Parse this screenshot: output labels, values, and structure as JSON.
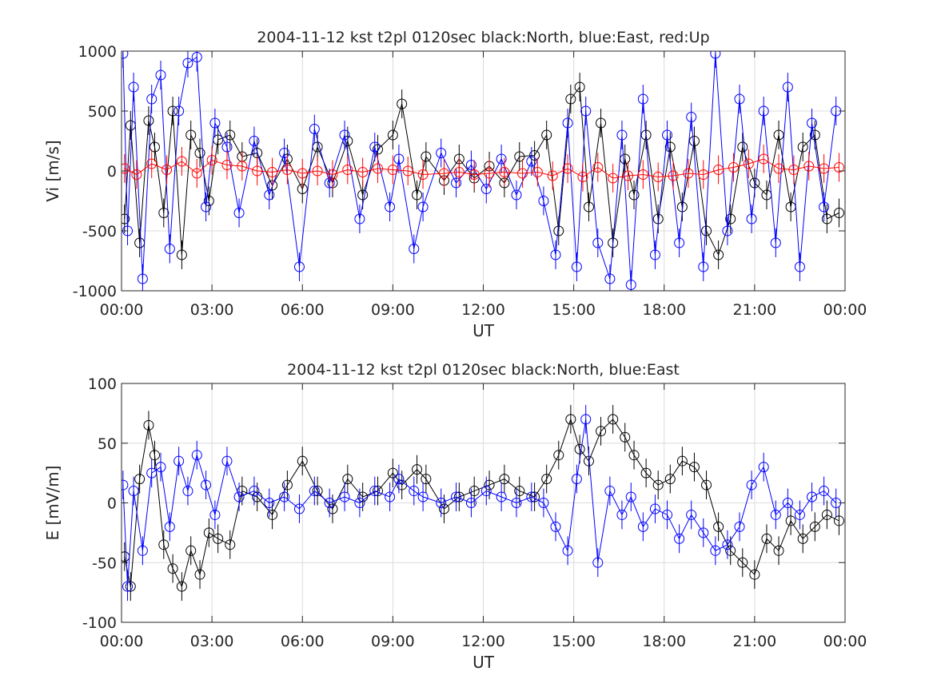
{
  "chart_data": [
    {
      "type": "scatter",
      "title": "2004-11-12 kst t2pl 0120sec black:North, blue:East, red:Up",
      "xlabel": "UT",
      "ylabel": "Vi [m/s]",
      "xlim": [
        0,
        24
      ],
      "ylim": [
        -1000,
        1000
      ],
      "xticks": [
        "00:00",
        "03:00",
        "06:00",
        "09:00",
        "12:00",
        "15:00",
        "18:00",
        "21:00",
        "00:00"
      ],
      "yticks": [
        "-1000",
        "-500",
        "0",
        "500",
        "1000"
      ],
      "grid": true,
      "marker": "open-circle-with-errorbar",
      "series": [
        {
          "name": "North",
          "color": "#000000",
          "x_hours": [
            0.1,
            0.3,
            0.6,
            0.9,
            1.1,
            1.4,
            1.7,
            2.0,
            2.3,
            2.6,
            2.9,
            3.2,
            3.6,
            4.0,
            4.5,
            5.0,
            5.5,
            6.0,
            6.5,
            7.0,
            7.5,
            8.0,
            8.5,
            9.0,
            9.3,
            9.8,
            10.1,
            10.7,
            11.2,
            11.7,
            12.2,
            12.7,
            13.2,
            13.7,
            14.1,
            14.5,
            14.9,
            15.2,
            15.5,
            15.9,
            16.3,
            16.7,
            17.0,
            17.4,
            17.8,
            18.2,
            18.6,
            19.0,
            19.4,
            19.8,
            20.2,
            20.6,
            21.0,
            21.4,
            21.8,
            22.2,
            22.6,
            23.0,
            23.4,
            23.8
          ],
          "values": [
            -400,
            380,
            -600,
            420,
            200,
            -350,
            500,
            -700,
            300,
            150,
            -250,
            260,
            300,
            120,
            150,
            -120,
            100,
            -150,
            200,
            -100,
            250,
            -200,
            180,
            300,
            560,
            -200,
            120,
            -80,
            100,
            -60,
            40,
            -100,
            120,
            130,
            300,
            -500,
            600,
            700,
            -300,
            400,
            -600,
            100,
            -200,
            300,
            -400,
            200,
            -300,
            250,
            -500,
            -700,
            -400,
            200,
            -100,
            -200,
            300,
            -300,
            200,
            300,
            -400,
            -350
          ]
        },
        {
          "name": "East",
          "color": "#0000ff",
          "x_hours": [
            0.05,
            0.2,
            0.4,
            0.7,
            1.0,
            1.3,
            1.6,
            1.9,
            2.2,
            2.5,
            2.8,
            3.1,
            3.5,
            3.9,
            4.4,
            4.9,
            5.4,
            5.9,
            6.4,
            6.9,
            7.4,
            7.9,
            8.4,
            8.9,
            9.2,
            9.7,
            10.0,
            10.6,
            11.1,
            11.6,
            12.1,
            12.6,
            13.1,
            13.6,
            14.0,
            14.4,
            14.8,
            15.1,
            15.4,
            15.8,
            16.2,
            16.6,
            16.9,
            17.3,
            17.7,
            18.1,
            18.5,
            18.9,
            19.3,
            19.7,
            20.1,
            20.5,
            20.9,
            21.3,
            21.7,
            22.1,
            22.5,
            22.9,
            23.3,
            23.7
          ],
          "values": [
            980,
            -500,
            700,
            -900,
            600,
            800,
            -650,
            500,
            900,
            950,
            -300,
            400,
            200,
            -350,
            250,
            -200,
            150,
            -800,
            350,
            -100,
            300,
            -400,
            200,
            -300,
            100,
            -650,
            -300,
            150,
            -100,
            50,
            -150,
            100,
            -200,
            80,
            -250,
            -700,
            400,
            -800,
            500,
            -600,
            -900,
            300,
            -950,
            600,
            -700,
            300,
            -600,
            450,
            -800,
            980,
            -500,
            600,
            -400,
            500,
            -600,
            700,
            -800,
            400,
            -300,
            500
          ]
        },
        {
          "name": "Up",
          "color": "#ff0000",
          "x_hours": [
            0.1,
            0.5,
            1.0,
            1.5,
            2.0,
            2.5,
            3.0,
            3.5,
            4.0,
            4.5,
            5.0,
            5.5,
            6.0,
            6.5,
            7.0,
            7.5,
            8.0,
            8.5,
            9.0,
            9.5,
            10.0,
            10.7,
            11.2,
            11.7,
            12.2,
            12.7,
            13.3,
            13.8,
            14.3,
            14.8,
            15.3,
            15.8,
            16.3,
            16.8,
            17.3,
            17.8,
            18.3,
            18.8,
            19.3,
            19.8,
            20.3,
            20.8,
            21.3,
            21.8,
            22.3,
            22.8,
            23.3,
            23.8
          ],
          "values": [
            20,
            -30,
            60,
            10,
            80,
            -20,
            90,
            50,
            40,
            0,
            -10,
            10,
            -20,
            0,
            -30,
            10,
            -10,
            20,
            10,
            0,
            -30,
            -20,
            -10,
            -30,
            -20,
            -10,
            -20,
            -10,
            -40,
            20,
            -50,
            30,
            -60,
            -40,
            -30,
            -50,
            -40,
            -20,
            -30,
            10,
            30,
            60,
            100,
            20,
            10,
            40,
            20,
            30
          ]
        }
      ]
    },
    {
      "type": "scatter",
      "title": "2004-11-12 kst t2pl 0120sec black:North, blue:East",
      "xlabel": "UT",
      "ylabel": "E [mV/m]",
      "xlim": [
        0,
        24
      ],
      "ylim": [
        -100,
        100
      ],
      "xticks": [
        "00:00",
        "03:00",
        "06:00",
        "09:00",
        "12:00",
        "15:00",
        "18:00",
        "21:00",
        "00:00"
      ],
      "yticks": [
        "-100",
        "-50",
        "0",
        "50",
        "100"
      ],
      "grid": true,
      "marker": "open-circle-with-errorbar",
      "series": [
        {
          "name": "North",
          "color": "#000000",
          "x_hours": [
            0.1,
            0.3,
            0.6,
            0.9,
            1.1,
            1.4,
            1.7,
            2.0,
            2.3,
            2.6,
            2.9,
            3.2,
            3.6,
            4.0,
            4.5,
            5.0,
            5.5,
            6.0,
            6.5,
            7.0,
            7.5,
            8.0,
            8.5,
            9.0,
            9.3,
            9.8,
            10.1,
            10.7,
            11.2,
            11.7,
            12.2,
            12.7,
            13.2,
            13.7,
            14.1,
            14.5,
            14.9,
            15.2,
            15.5,
            15.9,
            16.3,
            16.7,
            17.0,
            17.4,
            17.8,
            18.2,
            18.6,
            19.0,
            19.4,
            19.8,
            20.2,
            20.6,
            21.0,
            21.4,
            21.8,
            22.2,
            22.6,
            23.0,
            23.4,
            23.8
          ],
          "values": [
            -45,
            -70,
            20,
            65,
            40,
            -35,
            -55,
            -70,
            -40,
            -60,
            -25,
            -30,
            -35,
            10,
            5,
            -10,
            15,
            35,
            10,
            -5,
            20,
            5,
            10,
            25,
            15,
            28,
            20,
            -5,
            5,
            10,
            15,
            20,
            10,
            5,
            20,
            40,
            70,
            45,
            35,
            60,
            70,
            55,
            40,
            25,
            15,
            20,
            35,
            30,
            15,
            -20,
            -40,
            -50,
            -60,
            -30,
            -40,
            -15,
            -30,
            -20,
            -10,
            -15
          ]
        },
        {
          "name": "East",
          "color": "#0000ff",
          "x_hours": [
            0.05,
            0.2,
            0.4,
            0.7,
            1.0,
            1.3,
            1.6,
            1.9,
            2.2,
            2.5,
            2.8,
            3.1,
            3.5,
            3.9,
            4.4,
            4.9,
            5.4,
            5.9,
            6.4,
            6.9,
            7.4,
            7.9,
            8.4,
            8.9,
            9.2,
            9.7,
            10.0,
            10.6,
            11.1,
            11.6,
            12.1,
            12.6,
            13.1,
            13.6,
            14.0,
            14.4,
            14.8,
            15.1,
            15.4,
            15.8,
            16.2,
            16.6,
            16.9,
            17.3,
            17.7,
            18.1,
            18.5,
            18.9,
            19.3,
            19.7,
            20.1,
            20.5,
            20.9,
            21.3,
            21.7,
            22.1,
            22.5,
            22.9,
            23.3,
            23.7
          ],
          "values": [
            15,
            -70,
            10,
            -40,
            25,
            30,
            -20,
            35,
            10,
            40,
            15,
            -10,
            35,
            5,
            10,
            0,
            5,
            -5,
            10,
            0,
            5,
            0,
            10,
            5,
            20,
            10,
            5,
            0,
            5,
            0,
            10,
            5,
            0,
            5,
            0,
            -20,
            -40,
            20,
            70,
            -50,
            10,
            -10,
            5,
            -20,
            -5,
            -10,
            -30,
            -10,
            -25,
            -40,
            -35,
            -20,
            15,
            30,
            -10,
            0,
            -10,
            5,
            10,
            0
          ]
        }
      ]
    }
  ]
}
